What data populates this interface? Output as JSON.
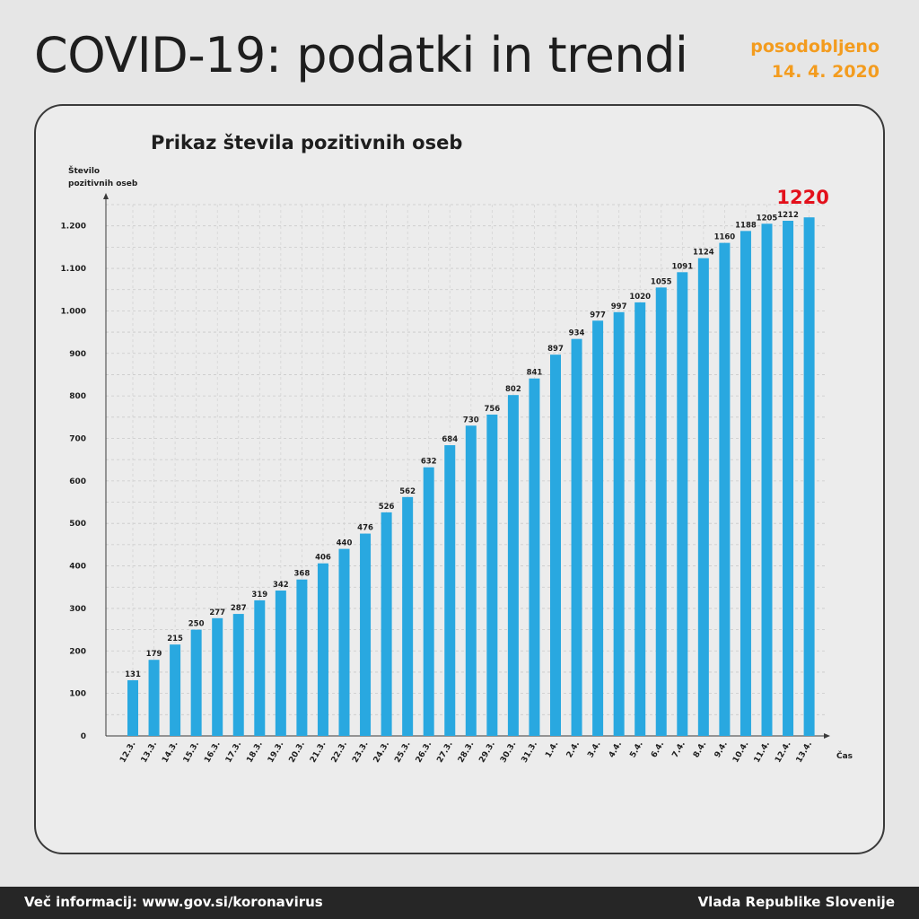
{
  "header": {
    "title": "COVID-19: podatki in trendi",
    "updated_label": "posodobljeno",
    "updated_date": "14. 4. 2020"
  },
  "footer": {
    "left_text": "Več informacij: www.gov.si/koronavirus",
    "right_text": "Vlada Republike Slovenije"
  },
  "colors": {
    "bar": "#29a8e0",
    "highlight": "#e3101b",
    "accent": "#f39c1f"
  },
  "chart_data": {
    "type": "bar",
    "title": "Prikaz števila pozitivnih oseb",
    "ylabel": [
      "Število",
      "pozitivnih oseb"
    ],
    "xlabel": "Čas",
    "ylim": [
      0,
      1250
    ],
    "yticks": [
      0,
      100,
      200,
      300,
      400,
      500,
      600,
      700,
      800,
      900,
      1000,
      1100,
      1200
    ],
    "ytick_labels": [
      "0",
      "100",
      "200",
      "300",
      "400",
      "500",
      "600",
      "700",
      "800",
      "900",
      "1.000",
      "1.100",
      "1.200"
    ],
    "grid": true,
    "categories": [
      "12.3.",
      "13.3.",
      "14.3.",
      "15.3.",
      "16.3.",
      "17.3.",
      "18.3.",
      "19.3.",
      "20.3.",
      "21.3.",
      "22.3.",
      "23.3.",
      "24.3.",
      "25.3.",
      "26.3.",
      "27.3.",
      "28.3.",
      "29.3.",
      "30.3.",
      "31.3.",
      "1.4.",
      "2.4.",
      "3.4.",
      "4.4.",
      "5.4.",
      "6.4.",
      "7.4.",
      "8.4.",
      "9.4.",
      "10.4.",
      "11.4.",
      "12.4.",
      "13.4."
    ],
    "values": [
      131,
      179,
      215,
      250,
      277,
      287,
      319,
      342,
      368,
      406,
      440,
      476,
      526,
      562,
      632,
      684,
      730,
      756,
      802,
      841,
      897,
      934,
      977,
      997,
      1020,
      1055,
      1091,
      1124,
      1160,
      1188,
      1205,
      1212,
      1220
    ],
    "highlight": {
      "label": "1220"
    }
  }
}
